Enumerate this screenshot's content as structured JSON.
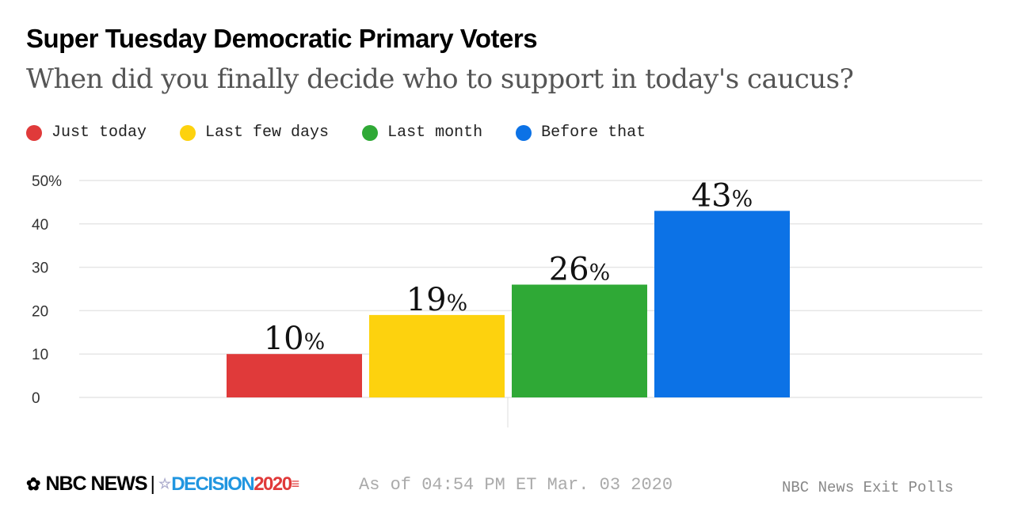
{
  "chart_data": {
    "type": "bar",
    "title": "Super Tuesday Democratic Primary Voters",
    "subtitle": "When did you finally decide who to support in today's caucus?",
    "categories": [
      "Just today",
      "Last few days",
      "Last month",
      "Before that"
    ],
    "values": [
      10,
      19,
      26,
      43
    ],
    "data_labels": [
      "10",
      "19",
      "26",
      "43"
    ],
    "label_suffix": "%",
    "colors": [
      "#e03a3a",
      "#fdd20e",
      "#2fa936",
      "#0c72e6"
    ],
    "ylim": [
      0,
      50
    ],
    "yticks": [
      0,
      10,
      20,
      30,
      40,
      50
    ],
    "ytick_labels": [
      "0",
      "10",
      "20",
      "30",
      "40",
      "50%"
    ],
    "grid": true,
    "legend": "top-left"
  },
  "footer": {
    "brand": "NBC NEWS",
    "separator": "|",
    "decision": "DECISION",
    "year": "2020",
    "timestamp": "As of 04:54 PM ET Mar. 03 2020",
    "source": "NBC News Exit Polls"
  }
}
